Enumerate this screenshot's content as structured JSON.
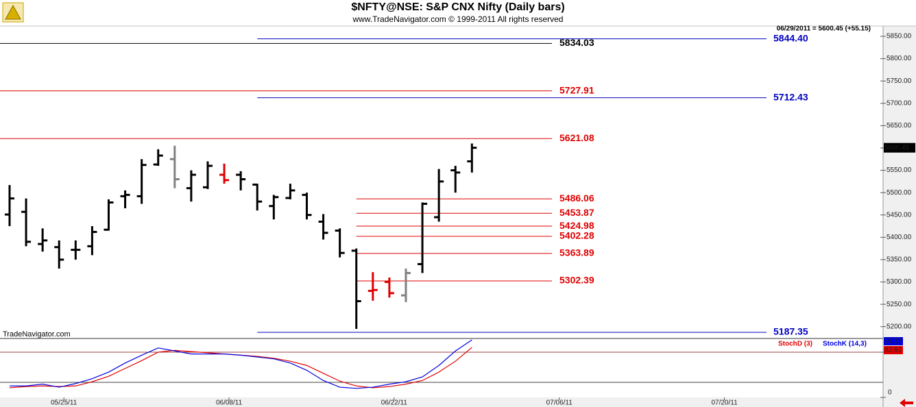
{
  "chart_data": [
    {
      "type": "ohlc",
      "title": "$NFTY@NSE:  S&P CNX Nifty  (Daily bars)",
      "subtitle": "www.TradeNavigator.com © 1999-2011 All rights reserved",
      "annotation": "06/29/2011 = 5600.45 (+55.15)",
      "source": "TradeNavigator.com",
      "x": [
        0,
        1,
        2,
        3,
        4,
        5,
        6,
        7,
        8,
        9,
        10,
        11,
        12,
        13,
        14,
        15,
        16,
        17,
        18,
        19,
        20,
        21,
        22,
        23,
        24,
        25,
        26,
        27,
        28
      ],
      "open": [
        5451,
        5457,
        5385,
        5378,
        5372,
        5380,
        5417,
        5492,
        5492,
        5563,
        5575,
        5510,
        5512,
        5540,
        5540,
        5518,
        5470,
        5488,
        5495,
        5435,
        5415,
        5370,
        5280,
        5300,
        5270,
        5340,
        5445,
        5550,
        5570
      ],
      "high": [
        5517,
        5487,
        5420,
        5393,
        5393,
        5425,
        5485,
        5505,
        5575,
        5597,
        5605,
        5550,
        5570,
        5565,
        5548,
        5520,
        5495,
        5520,
        5500,
        5452,
        5420,
        5375,
        5322,
        5310,
        5330,
        5478,
        5553,
        5560,
        5610
      ],
      "low": [
        5425,
        5380,
        5368,
        5330,
        5350,
        5360,
        5415,
        5465,
        5475,
        5560,
        5510,
        5480,
        5508,
        5520,
        5505,
        5460,
        5440,
        5485,
        5440,
        5395,
        5355,
        5195,
        5258,
        5265,
        5255,
        5320,
        5435,
        5500,
        5545
      ],
      "close": [
        5487,
        5390,
        5393,
        5350,
        5372,
        5412,
        5478,
        5495,
        5562,
        5583,
        5530,
        5540,
        5560,
        5528,
        5530,
        5480,
        5490,
        5505,
        5450,
        5410,
        5365,
        5257,
        5282,
        5275,
        5320,
        5475,
        5525,
        5545,
        5600.45
      ],
      "colors": [
        "#000000",
        "#000000",
        "#000000",
        "#000000",
        "#000000",
        "#000000",
        "#000000",
        "#000000",
        "#000000",
        "#000000",
        "#808080",
        "#000000",
        "#000000",
        "#e00000",
        "#000000",
        "#000000",
        "#000000",
        "#000000",
        "#000000",
        "#000000",
        "#000000",
        "#000000",
        "#e00000",
        "#e00000",
        "#808080",
        "#000000",
        "#000000",
        "#000000",
        "#000000"
      ],
      "fib_levels": [
        5834.03,
        5727.91,
        5621.08,
        5486.06,
        5453.87,
        5424.98,
        5402.28,
        5363.89,
        5302.39
      ],
      "fib_colors": [
        "#000000",
        "#e00000",
        "#e00000",
        "#e00000",
        "#e00000",
        "#e00000",
        "#e00000",
        "#e00000",
        "#e00000"
      ],
      "channel_levels": [
        {
          "value": 5844.4,
          "label": "5844.40"
        },
        5712.43,
        5187.35
      ],
      "channel_color": "#0000c0",
      "xlim": [
        -0.58,
        52.9
      ],
      "xticks": [
        {
          "value": 3,
          "label": "05/25/11"
        },
        {
          "value": 13,
          "label": "06/08/11"
        },
        {
          "value": 23,
          "label": "06/22/11"
        },
        {
          "value": 33,
          "label": "07/06/11"
        },
        {
          "value": 43,
          "label": "07/20/11"
        }
      ],
      "ylim": [
        5175,
        5873
      ],
      "yticks": [
        {
          "value": 5200,
          "label": "5200.00"
        },
        {
          "value": 5250,
          "label": "5250.00"
        },
        {
          "value": 5300,
          "label": "5300.00"
        },
        {
          "value": 5350,
          "label": "5350.00"
        },
        {
          "value": 5400,
          "label": "5400.00"
        },
        {
          "value": 5450,
          "label": "5450.00"
        },
        {
          "value": 5500,
          "label": "5500.00"
        },
        {
          "value": 5550,
          "label": "5550.00"
        },
        {
          "value": 5600,
          "label": "5600.00"
        },
        {
          "value": 5650,
          "label": "5650.00"
        },
        {
          "value": 5700,
          "label": "5700.00"
        },
        {
          "value": 5750,
          "label": "5750.00"
        },
        {
          "value": 5800,
          "label": "5800.00"
        },
        {
          "value": 5850,
          "label": "5850.00"
        }
      ]
    },
    {
      "type": "line",
      "x": [
        0,
        1,
        2,
        3,
        4,
        5,
        6,
        7,
        8,
        9,
        10,
        11,
        12,
        13,
        14,
        15,
        16,
        17,
        18,
        19,
        20,
        21,
        22,
        23,
        24,
        25,
        26,
        27,
        28
      ],
      "series": [
        {
          "name": "StochD (3)",
          "color": "#e00000",
          "values": [
            16,
            18,
            19,
            18,
            19,
            26,
            35,
            48,
            61,
            75,
            78,
            76,
            74,
            72,
            70,
            68,
            65,
            60,
            53,
            40,
            27,
            19,
            16,
            18,
            22,
            28,
            42,
            60,
            82.91
          ]
        },
        {
          "name": "StochK (14,3)",
          "color": "#0000e0",
          "values": [
            19,
            19,
            22,
            17,
            23,
            31,
            42,
            57,
            70,
            82,
            77,
            72,
            72,
            72,
            70,
            67,
            64,
            57,
            45,
            28,
            17,
            15,
            17,
            22,
            26,
            34,
            53,
            77,
            95.37
          ]
        }
      ],
      "ylim": [
        0,
        100
      ],
      "yticks": [
        0,
        75
      ],
      "levels": [
        75,
        25
      ]
    }
  ]
}
